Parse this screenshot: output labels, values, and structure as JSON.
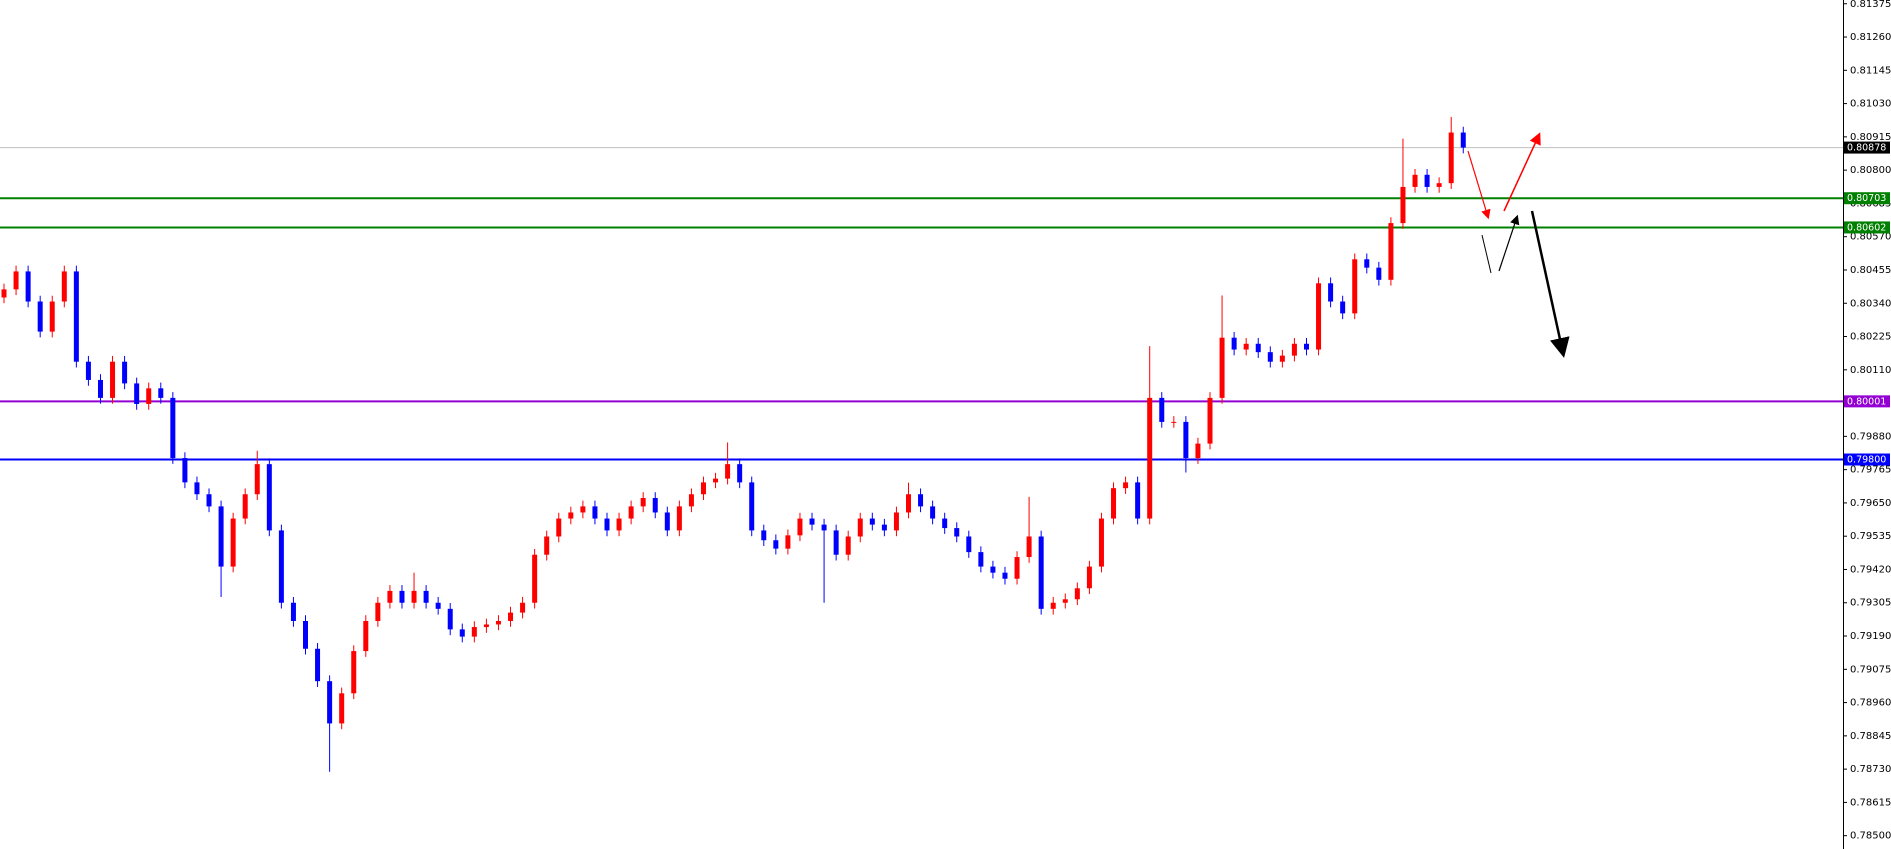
{
  "chart_data": {
    "type": "candlestick",
    "up_color": "#ff0000",
    "down_color": "#0000ff",
    "ylim": [
      0.78454,
      0.81388
    ],
    "yticks": [
      0.81375,
      {
        "value": 0.8126,
        "label": "0.81260"
      },
      0.81145,
      {
        "value": 0.8103,
        "label": "0.81030"
      },
      0.80915,
      {
        "value": 0.808,
        "label": "0.80800"
      },
      0.80685,
      {
        "value": 0.8057,
        "label": "0.80570"
      },
      0.80455,
      {
        "value": 0.8034,
        "label": "0.80340"
      },
      0.80225,
      {
        "value": 0.8011,
        "label": "0.80110"
      },
      {
        "value": 0.7988,
        "label": "0.79880"
      },
      0.79765,
      {
        "value": 0.7965,
        "label": "0.79650"
      },
      0.79535,
      {
        "value": 0.7942,
        "label": "0.79420"
      },
      0.79305,
      {
        "value": 0.7919,
        "label": "0.79190"
      },
      0.79075,
      {
        "value": 0.7896,
        "label": "0.78960"
      },
      0.78845,
      {
        "value": 0.7873,
        "label": "0.78730"
      },
      0.78615,
      {
        "value": 0.785,
        "label": "0.78500"
      }
    ],
    "levels": [
      {
        "value": 0.80878,
        "color": "#c0c0c0",
        "label_color": "#000000"
      },
      {
        "value": 0.80703,
        "color": "#008000",
        "label_color": "#008000"
      },
      {
        "value": 0.80602,
        "color": "#008000",
        "label_color": "#008000"
      },
      {
        "value": 0.80001,
        "color": "#9400d3",
        "label_color": "#9400d3"
      },
      {
        "value": 0.798,
        "label": "0.79800",
        "color": "#0000ff",
        "label_color": "#0000ff"
      }
    ],
    "open": [
      0.8036,
      0.80388,
      0.8045,
      0.80346,
      0.80242,
      0.80346,
      0.8045,
      0.80138,
      0.80075,
      0.80013,
      0.80138,
      0.80063,
      0.79992,
      0.80046,
      0.80013,
      0.79805,
      0.79721,
      0.7968,
      0.79638,
      0.7943,
      0.79596,
      0.7968,
      0.79784,
      0.79555,
      0.79305,
      0.79242,
      0.79146,
      0.79034,
      0.78888,
      0.78992,
      0.79138,
      0.79242,
      0.79305,
      0.79346,
      0.79305,
      0.79346,
      0.79305,
      0.79284,
      0.79213,
      0.79188,
      0.79221,
      0.7923,
      0.79242,
      0.79271,
      0.79305,
      0.79471,
      0.79534,
      0.79596,
      0.79617,
      0.79638,
      0.79596,
      0.79555,
      0.79596,
      0.79638,
      0.79667,
      0.79617,
      0.79555,
      0.79638,
      0.7968,
      0.79721,
      0.79734,
      0.79784,
      0.79721,
      0.79555,
      0.79521,
      0.79492,
      0.79538,
      0.79596,
      0.79575,
      0.79555,
      0.79471,
      0.79534,
      0.79596,
      0.79575,
      0.79555,
      0.79617,
      0.7968,
      0.79638,
      0.79596,
      0.79563,
      0.79534,
      0.7948,
      0.7943,
      0.79409,
      0.79388,
      0.79463,
      0.79534,
      0.79284,
      0.79305,
      0.79317,
      0.79355,
      0.7943,
      0.79596,
      0.79701,
      0.79721,
      0.79596,
      0.80013,
      0.7993,
      0.7993,
      0.79805,
      0.79855,
      0.80013,
      0.80221,
      0.8018,
      0.802,
      0.80171,
      0.80138,
      0.80159,
      0.802,
      0.8018,
      0.80409,
      0.80346,
      0.80305,
      0.80492,
      0.80463,
      0.80421,
      0.80617,
      0.80742,
      0.80784,
      0.80742,
      0.80755,
      0.8093
    ],
    "high": [
      0.80408,
      0.8047,
      0.8047,
      0.80366,
      0.80366,
      0.8047,
      0.8047,
      0.80158,
      0.80095,
      0.80158,
      0.80158,
      0.80083,
      0.80066,
      0.80066,
      0.80033,
      0.79825,
      0.79741,
      0.797,
      0.79658,
      0.79616,
      0.797,
      0.7983,
      0.79804,
      0.79575,
      0.79325,
      0.79262,
      0.79166,
      0.79054,
      0.79012,
      0.79158,
      0.79262,
      0.79325,
      0.79366,
      0.79366,
      0.79409,
      0.79366,
      0.79325,
      0.79304,
      0.79233,
      0.79241,
      0.7925,
      0.79262,
      0.79291,
      0.79325,
      0.79491,
      0.79554,
      0.79616,
      0.79637,
      0.79658,
      0.79658,
      0.79616,
      0.79616,
      0.79658,
      0.79687,
      0.79687,
      0.79637,
      0.79658,
      0.797,
      0.79741,
      0.79754,
      0.79859,
      0.79804,
      0.79741,
      0.79575,
      0.79541,
      0.79558,
      0.79616,
      0.79616,
      0.79595,
      0.79575,
      0.79554,
      0.79616,
      0.79616,
      0.79595,
      0.79637,
      0.7972,
      0.797,
      0.79658,
      0.79616,
      0.79583,
      0.79554,
      0.795,
      0.7945,
      0.79429,
      0.79483,
      0.79671,
      0.79554,
      0.79325,
      0.79337,
      0.79375,
      0.7945,
      0.79616,
      0.79721,
      0.79741,
      0.79741,
      0.80192,
      0.80033,
      0.7995,
      0.7995,
      0.79875,
      0.80033,
      0.80367,
      0.80241,
      0.8022,
      0.8022,
      0.80191,
      0.80179,
      0.8022,
      0.8022,
      0.80429,
      0.80429,
      0.80366,
      0.80512,
      0.80512,
      0.80483,
      0.80637,
      0.80909,
      0.80804,
      0.80804,
      0.80775,
      0.80984,
      0.8095
    ],
    "low": [
      0.8034,
      0.80368,
      0.80326,
      0.80222,
      0.80222,
      0.80326,
      0.80118,
      0.80055,
      0.79993,
      0.79993,
      0.80043,
      0.79972,
      0.79972,
      0.79993,
      0.79785,
      0.79701,
      0.7966,
      0.79618,
      0.79325,
      0.7941,
      0.79576,
      0.7966,
      0.79535,
      0.79285,
      0.79222,
      0.79126,
      0.79014,
      0.78721,
      0.78868,
      0.78972,
      0.79118,
      0.79222,
      0.79285,
      0.79285,
      0.79285,
      0.79285,
      0.79264,
      0.79193,
      0.79168,
      0.79168,
      0.79201,
      0.7921,
      0.79222,
      0.79251,
      0.79285,
      0.79451,
      0.79514,
      0.79576,
      0.79597,
      0.79576,
      0.79535,
      0.79535,
      0.79576,
      0.79618,
      0.79597,
      0.79535,
      0.79535,
      0.79618,
      0.7966,
      0.79701,
      0.79714,
      0.79701,
      0.79535,
      0.79501,
      0.79472,
      0.79472,
      0.79518,
      0.79555,
      0.79305,
      0.79451,
      0.79451,
      0.79514,
      0.79555,
      0.79535,
      0.79535,
      0.79597,
      0.79618,
      0.79576,
      0.79543,
      0.79514,
      0.7946,
      0.7941,
      0.79389,
      0.79368,
      0.79368,
      0.79443,
      0.79264,
      0.79264,
      0.79285,
      0.79297,
      0.79335,
      0.7941,
      0.79576,
      0.79681,
      0.79576,
      0.79576,
      0.7991,
      0.7991,
      0.79755,
      0.79785,
      0.79835,
      0.79993,
      0.8016,
      0.8016,
      0.80151,
      0.80118,
      0.80118,
      0.80139,
      0.8016,
      0.8016,
      0.80326,
      0.80285,
      0.80285,
      0.80443,
      0.80401,
      0.80401,
      0.80597,
      0.80722,
      0.80722,
      0.80722,
      0.80735,
      0.80858
    ],
    "close": [
      0.80388,
      0.8045,
      0.80346,
      0.80242,
      0.80346,
      0.8045,
      0.80138,
      0.80075,
      0.80013,
      0.80138,
      0.80063,
      0.79992,
      0.80046,
      0.80013,
      0.79805,
      0.79721,
      0.7968,
      0.79638,
      0.7943,
      0.79596,
      0.7968,
      0.79784,
      0.79555,
      0.79305,
      0.79242,
      0.79146,
      0.79034,
      0.78888,
      0.78992,
      0.79138,
      0.79242,
      0.79305,
      0.79346,
      0.79305,
      0.79346,
      0.79305,
      0.79284,
      0.79213,
      0.79188,
      0.79221,
      0.7923,
      0.79242,
      0.79271,
      0.79305,
      0.79471,
      0.79534,
      0.79596,
      0.79617,
      0.79638,
      0.79596,
      0.79555,
      0.79596,
      0.79638,
      0.79667,
      0.79617,
      0.79555,
      0.79638,
      0.7968,
      0.79721,
      0.79734,
      0.79784,
      0.79721,
      0.79555,
      0.79521,
      0.79492,
      0.79538,
      0.79596,
      0.79575,
      0.79555,
      0.79471,
      0.79534,
      0.79596,
      0.79575,
      0.79555,
      0.79617,
      0.7968,
      0.79638,
      0.79596,
      0.79563,
      0.79534,
      0.7948,
      0.7943,
      0.79409,
      0.79388,
      0.79463,
      0.79534,
      0.79284,
      0.79305,
      0.79317,
      0.79355,
      0.7943,
      0.79596,
      0.79701,
      0.79721,
      0.79596,
      0.80013,
      0.7993,
      0.7993,
      0.79805,
      0.79855,
      0.80013,
      0.80221,
      0.8018,
      0.802,
      0.80171,
      0.80138,
      0.80159,
      0.802,
      0.8018,
      0.80409,
      0.80346,
      0.80305,
      0.80492,
      0.80463,
      0.80421,
      0.80617,
      0.80742,
      0.80784,
      0.80742,
      0.80755,
      0.8093,
      0.80878
    ]
  }
}
